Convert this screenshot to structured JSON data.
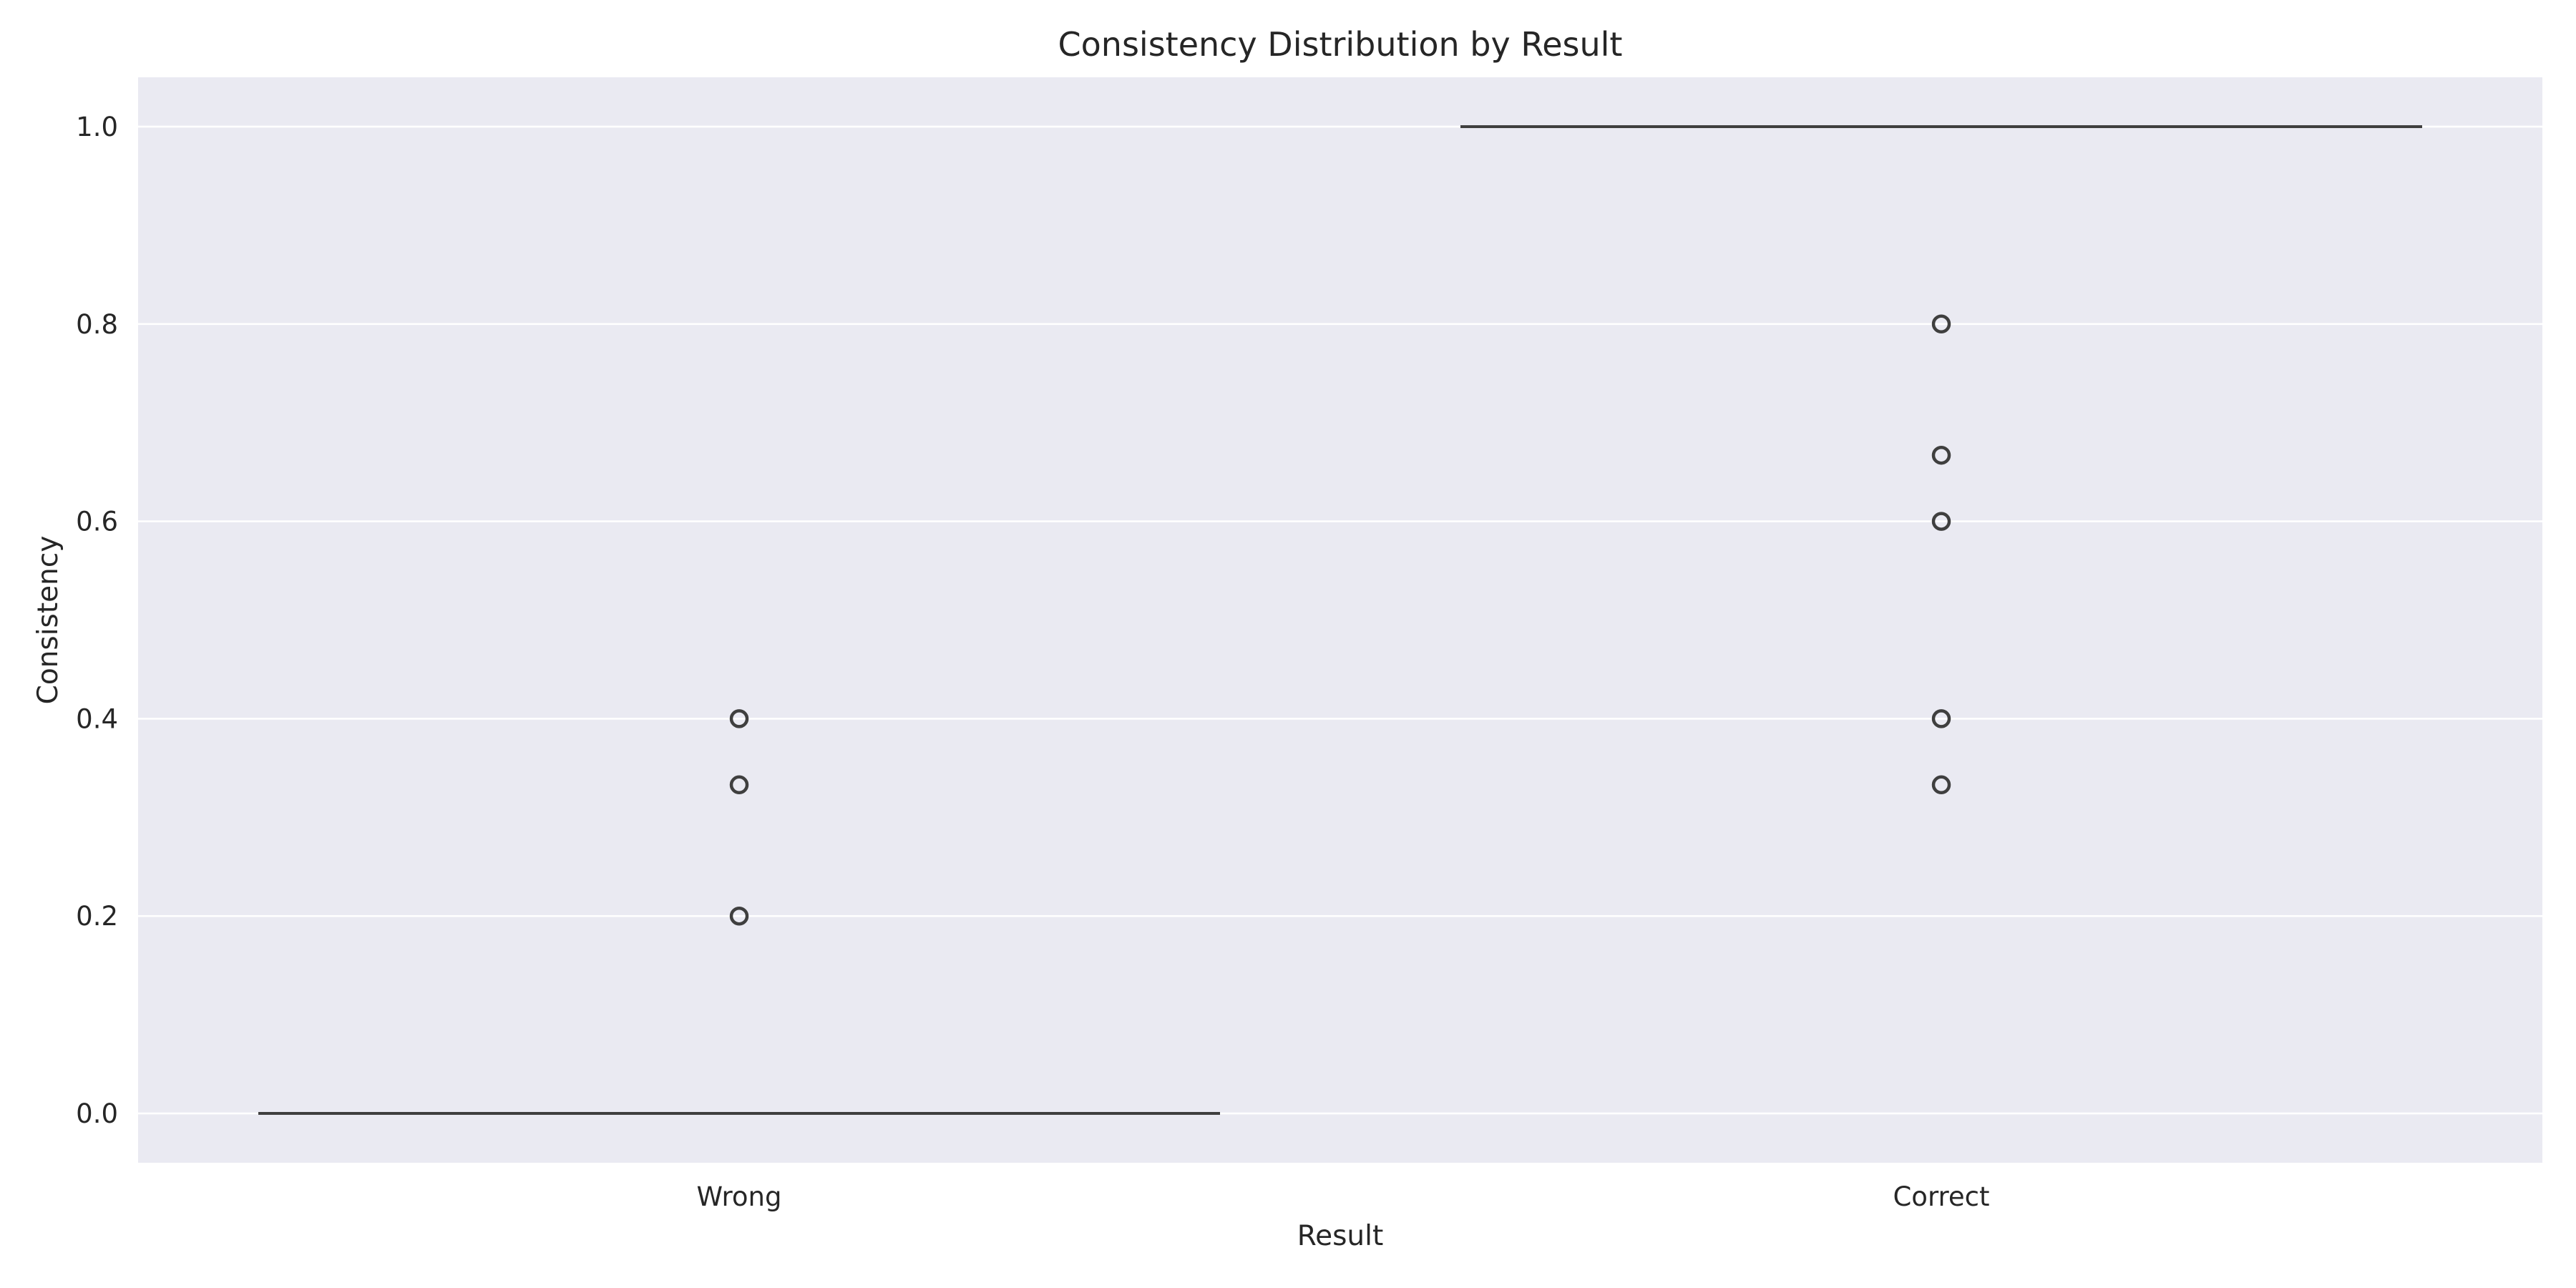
{
  "chart_data": {
    "type": "box",
    "title": "Consistency Distribution by Result",
    "xlabel": "Result",
    "ylabel": "Consistency",
    "categories": [
      "Wrong",
      "Correct"
    ],
    "ylim": [
      -0.05,
      1.05
    ],
    "yticks": [
      0.0,
      0.2,
      0.4,
      0.6,
      0.8,
      1.0
    ],
    "ytick_labels": [
      "0.0",
      "0.2",
      "0.4",
      "0.6",
      "0.8",
      "1.0"
    ],
    "grid": true,
    "boxes": [
      {
        "category": "Wrong",
        "min": 0.0,
        "q1": 0.0,
        "median": 0.0,
        "q3": 0.0,
        "max": 0.0,
        "outliers": [
          0.2,
          0.333,
          0.4
        ]
      },
      {
        "category": "Correct",
        "min": 1.0,
        "q1": 1.0,
        "median": 1.0,
        "q3": 1.0,
        "max": 1.0,
        "outliers": [
          0.333,
          0.4,
          0.6,
          0.667,
          0.8
        ]
      }
    ],
    "colors": {
      "plot_background": "#eaeaf2",
      "grid": "#ffffff",
      "box_line": "#3f3f3f",
      "text": "#262626"
    }
  }
}
